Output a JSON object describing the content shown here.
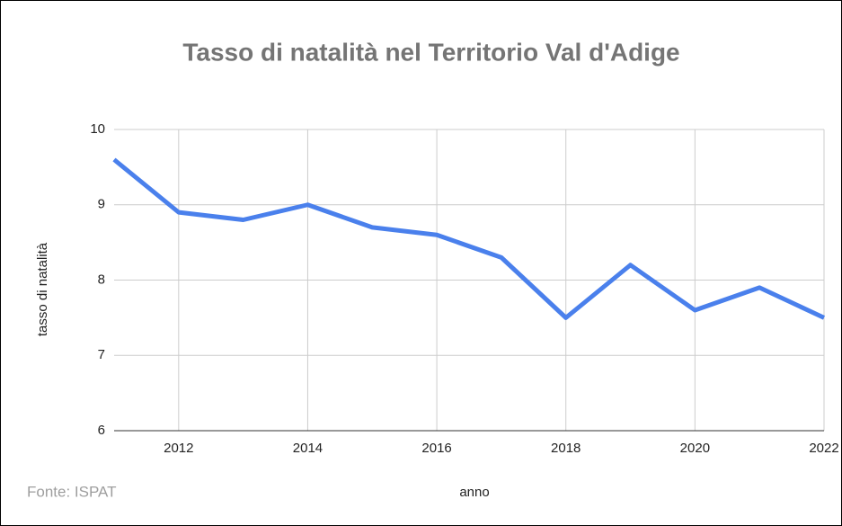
{
  "chart_data": {
    "type": "line",
    "title": "Tasso di natalità nel Territorio Val d'Adige",
    "x_label": "anno",
    "y_label": "tasso di natalità",
    "source": "Fonte:  ISPAT",
    "x": [
      2011,
      2012,
      2013,
      2014,
      2015,
      2016,
      2017,
      2018,
      2019,
      2020,
      2021,
      2022
    ],
    "series": [
      {
        "name": "tasso di natalità",
        "color": "#4a80ec",
        "values": [
          9.6,
          8.9,
          8.8,
          9.0,
          8.7,
          8.6,
          8.3,
          7.5,
          8.2,
          7.6,
          7.9,
          7.5
        ]
      }
    ],
    "xlim": [
      2011,
      2022
    ],
    "xticks": [
      2012,
      2014,
      2016,
      2018,
      2020,
      2022
    ],
    "ylim": [
      6,
      10
    ],
    "yticks": [
      6,
      7,
      8,
      9,
      10
    ],
    "grid": true
  }
}
